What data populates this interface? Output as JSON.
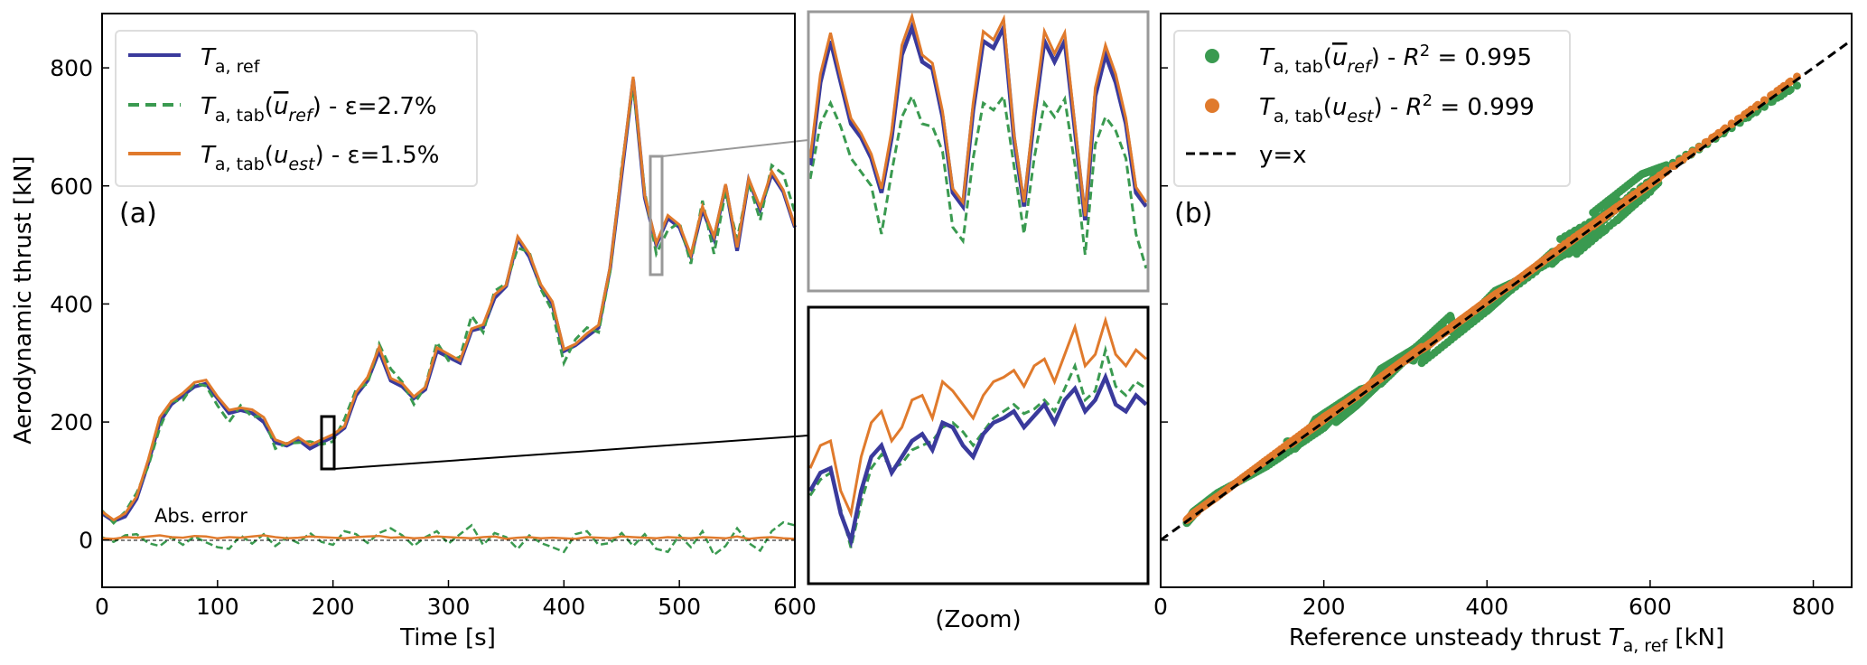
{
  "colors": {
    "ref": "#3a3a9c",
    "tab_uref": "#3a9a50",
    "tab_uest": "#e07a2c",
    "yx": "#000000"
  },
  "chart_data": [
    {
      "panel": "(a)",
      "type": "line",
      "xlabel": "Time [s]",
      "ylabel": "Aerodynamic thrust [kN]",
      "xlim": [
        0,
        600
      ],
      "ylim": [
        -80,
        892
      ],
      "xticks": [
        "0",
        "100",
        "200",
        "300",
        "400",
        "500",
        "600"
      ],
      "yticks": [
        "0",
        "200",
        "400",
        "600",
        "800"
      ],
      "annotation": "Abs. error",
      "legend": {
        "placement": "top-left",
        "entries": [
          {
            "base": "T",
            "sub": "a, ref",
            "rest": ""
          },
          {
            "base": "T",
            "sub": "a, tab",
            "arg": "u",
            "argsub": "ref",
            "overline": true,
            "rest": " - ε=2.7%"
          },
          {
            "base": "T",
            "sub": "a, tab",
            "arg": "u",
            "argsub": "est",
            "overline": false,
            "rest": " - ε=1.5%"
          }
        ]
      },
      "x": [
        0,
        10,
        20,
        30,
        40,
        50,
        60,
        70,
        80,
        90,
        100,
        110,
        120,
        130,
        140,
        150,
        160,
        170,
        180,
        190,
        200,
        210,
        220,
        230,
        240,
        250,
        260,
        270,
        280,
        290,
        300,
        310,
        320,
        330,
        340,
        350,
        360,
        370,
        380,
        390,
        400,
        410,
        420,
        430,
        440,
        450,
        460,
        470,
        480,
        490,
        500,
        510,
        520,
        530,
        540,
        550,
        560,
        570,
        580,
        590,
        600
      ],
      "series": [
        {
          "name": "T_a,ref",
          "values": [
            45,
            32,
            40,
            70,
            130,
            200,
            230,
            245,
            260,
            265,
            240,
            215,
            220,
            215,
            200,
            165,
            160,
            170,
            155,
            165,
            175,
            190,
            245,
            270,
            320,
            270,
            260,
            240,
            255,
            320,
            310,
            300,
            355,
            360,
            410,
            430,
            510,
            480,
            430,
            400,
            320,
            330,
            345,
            360,
            460,
            620,
            780,
            580,
            500,
            545,
            530,
            480,
            560,
            510,
            600,
            490,
            610,
            560,
            620,
            590,
            530
          ]
        },
        {
          "name": "error T_a,tab(u_ref)",
          "values": [
            5,
            -3,
            8,
            10,
            -5,
            -10,
            5,
            -8,
            6,
            -4,
            -12,
            -15,
            8,
            -6,
            10,
            -10,
            4,
            -5,
            12,
            -3,
            -8,
            15,
            10,
            -5,
            12,
            20,
            8,
            -10,
            5,
            15,
            -6,
            10,
            25,
            -8,
            12,
            5,
            -15,
            8,
            -5,
            -12,
            -20,
            10,
            15,
            -8,
            -5,
            12,
            -10,
            10,
            -15,
            -20,
            8,
            -12,
            15,
            -25,
            -10,
            20,
            -5,
            -18,
            15,
            30,
            25
          ]
        },
        {
          "name": "error T_a,tab(u_est)",
          "values": [
            3,
            2,
            5,
            4,
            6,
            8,
            5,
            4,
            7,
            6,
            3,
            5,
            4,
            6,
            8,
            5,
            3,
            4,
            6,
            5,
            4,
            3,
            5,
            6,
            7,
            4,
            5,
            3,
            4,
            6,
            5,
            4,
            3,
            5,
            6,
            2,
            4,
            5,
            3,
            4,
            3,
            2,
            5,
            4,
            3,
            6,
            5,
            4,
            3,
            5,
            4,
            3,
            5,
            4,
            3,
            6,
            2,
            4,
            5,
            3,
            2
          ]
        }
      ],
      "zoom_boxes": [
        {
          "t": [
            474,
            484
          ],
          "y": [
            450,
            650
          ],
          "style": "gray"
        },
        {
          "t": [
            185,
            197
          ],
          "y": [
            120,
            210
          ],
          "style": "black"
        }
      ]
    },
    {
      "panel": "(Zoom)",
      "type": "line",
      "xlabel": "(Zoom)",
      "insets": [
        {
          "range_t": [
            474,
            484
          ],
          "ylim": [
            450,
            650
          ],
          "ref": [
            540,
            600,
            630,
            600,
            570,
            560,
            545,
            520,
            560,
            620,
            640,
            615,
            610,
            575,
            520,
            510,
            580,
            630,
            625,
            640,
            560,
            510,
            575,
            630,
            615,
            630,
            565,
            500,
            590,
            620,
            600,
            570,
            520,
            510
          ],
          "tab_uest": [
            545,
            606,
            636,
            604,
            574,
            563,
            548,
            523,
            565,
            627,
            648,
            620,
            614,
            579,
            523,
            513,
            585,
            637,
            631,
            646,
            563,
            513,
            580,
            637,
            621,
            636,
            569,
            503,
            596,
            627,
            606,
            574,
            524,
            513
          ],
          "tab_uref": [
            530,
            570,
            585,
            568,
            545,
            535,
            525,
            490,
            535,
            575,
            590,
            570,
            568,
            550,
            495,
            485,
            545,
            585,
            580,
            590,
            540,
            490,
            545,
            585,
            575,
            588,
            540,
            475,
            555,
            575,
            565,
            545,
            490,
            465
          ]
        },
        {
          "range_t": [
            185,
            197
          ],
          "ylim": [
            110,
            230
          ],
          "ref": [
            150,
            158,
            160,
            140,
            128,
            150,
            165,
            170,
            158,
            165,
            172,
            175,
            168,
            180,
            178,
            170,
            165,
            175,
            180,
            182,
            185,
            178,
            183,
            188,
            180,
            190,
            195,
            185,
            190,
            200,
            188,
            185,
            192,
            188
          ],
          "tab_uest": [
            160,
            170,
            172,
            150,
            140,
            165,
            180,
            185,
            172,
            178,
            190,
            192,
            182,
            198,
            194,
            188,
            182,
            192,
            198,
            200,
            203,
            196,
            205,
            208,
            198,
            210,
            222,
            205,
            210,
            225,
            210,
            205,
            212,
            208
          ],
          "tab_uref": [
            148,
            155,
            158,
            142,
            125,
            145,
            160,
            166,
            160,
            162,
            168,
            170,
            172,
            178,
            180,
            176,
            170,
            176,
            182,
            185,
            188,
            184,
            186,
            190,
            185,
            195,
            205,
            190,
            194,
            212,
            196,
            192,
            198,
            195
          ]
        }
      ]
    },
    {
      "panel": "(b)",
      "type": "scatter",
      "xlabel_pre": "Reference unsteady thrust ",
      "xlabel_sub": "a, ref",
      "xlabel_post": " [kN]",
      "xlim": [
        0,
        847
      ],
      "ylim": [
        -80,
        892
      ],
      "xticks": [
        "0",
        "200",
        "400",
        "600",
        "800"
      ],
      "legend": {
        "placement": "top-left",
        "entries": [
          {
            "arg": "u",
            "argsub": "ref",
            "overline": true,
            "r2": "0.995"
          },
          {
            "arg": "u",
            "argsub": "est",
            "overline": false,
            "r2": "0.999"
          },
          {
            "label": "y=x"
          }
        ]
      }
    }
  ]
}
